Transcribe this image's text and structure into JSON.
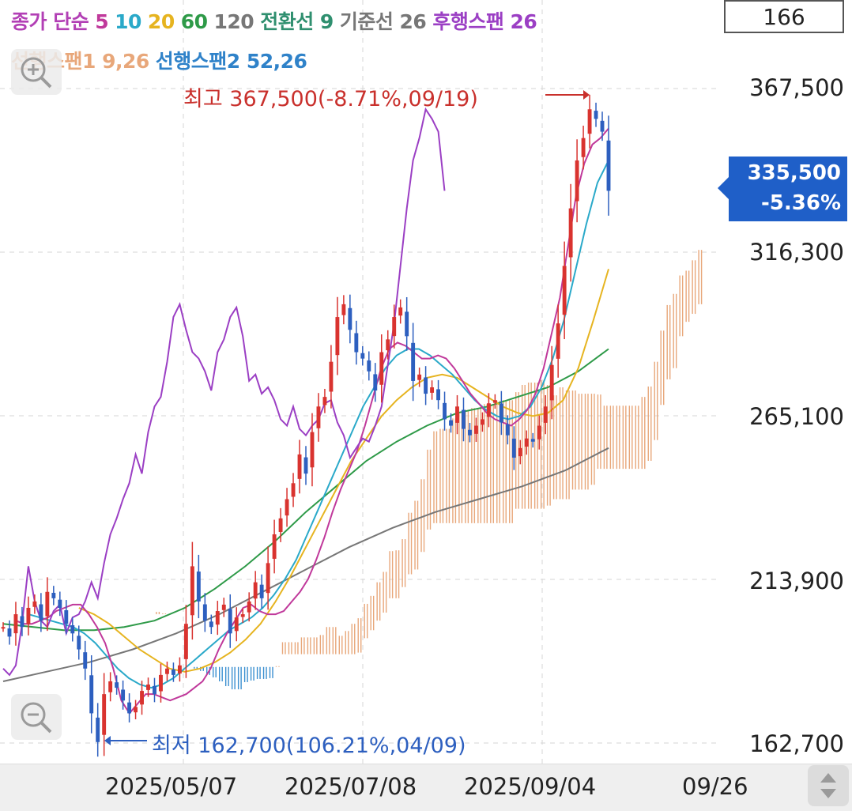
{
  "legend": {
    "line1": [
      {
        "text": "종가 단순",
        "color": "#b23fb5"
      },
      {
        "text": "5",
        "color": "#c0399b"
      },
      {
        "text": "10",
        "color": "#2aa9c9"
      },
      {
        "text": "20",
        "color": "#e6b420"
      },
      {
        "text": "60",
        "color": "#2e9a48"
      },
      {
        "text": "120",
        "color": "#777777"
      },
      {
        "text": "전환선 9",
        "color": "#2f8f6f"
      },
      {
        "text": "기준선 26",
        "color": "#777777"
      },
      {
        "text": "후행스팬 26",
        "color": "#9b3fc4"
      }
    ],
    "line2": [
      {
        "text": "선행스팬1 9,26",
        "color": "#e8a77a"
      },
      {
        "text": "선행스팬2 52,26",
        "color": "#2f82c9"
      }
    ]
  },
  "count_box": "166",
  "price_tag": {
    "price": "335,500",
    "change": "-5.36%"
  },
  "annotations": {
    "high": "최고 367,500(-8.71%,09/19)",
    "low": "최저 162,700(106.21%,04/09)"
  },
  "colors": {
    "up": "#d9332f",
    "down": "#2d5fbf",
    "high_text": "#c9302c",
    "low_text": "#2d5fbf",
    "tag_bg": "#1f5fc8"
  },
  "icons": [
    "zoom-in-icon",
    "zoom-out-icon",
    "scroll-arrows-icon"
  ],
  "chart_data": {
    "type": "candlestick",
    "y_axis": {
      "ticks": [
        367500,
        316300,
        265100,
        213900,
        162700
      ],
      "tick_labels": [
        "367,500",
        "316,300",
        "265,100",
        "213,900",
        "162,700"
      ],
      "range": [
        162700,
        367500
      ]
    },
    "x_axis": {
      "tick_labels": [
        "2025/05/07",
        "2025/07/08",
        "2025/09/04",
        "09/26"
      ]
    },
    "grid": true,
    "current_price": 335500,
    "change_percent": -5.36,
    "high": {
      "value": 367500,
      "pct": -8.71,
      "date": "09/19"
    },
    "low": {
      "value": 162700,
      "pct": 106.21,
      "date": "04/09"
    },
    "close": [
      199000,
      196000,
      203000,
      199000,
      205000,
      207000,
      201000,
      210000,
      208000,
      205000,
      200000,
      197000,
      192000,
      186000,
      172000,
      163000,
      178000,
      182000,
      180000,
      176000,
      172000,
      174000,
      179000,
      181000,
      178000,
      184000,
      186000,
      184000,
      187000,
      200000,
      218000,
      207000,
      201000,
      199000,
      204000,
      206000,
      197000,
      202000,
      203000,
      207000,
      213000,
      208000,
      219000,
      228000,
      233000,
      239000,
      244000,
      253000,
      247000,
      260000,
      268000,
      271000,
      282000,
      296000,
      300000,
      292000,
      285000,
      283000,
      279000,
      273000,
      285000,
      289000,
      296000,
      299000,
      290000,
      276000,
      278000,
      272000,
      274000,
      270000,
      264000,
      262000,
      268000,
      261000,
      259000,
      262000,
      264000,
      269000,
      270000,
      263000,
      259000,
      252000,
      255000,
      258000,
      257000,
      262000,
      268000,
      281000,
      294000,
      312000,
      330000,
      345000,
      352000,
      361000,
      358000,
      354000,
      335500
    ],
    "ma5": [
      201000,
      200000,
      200000,
      201000,
      202000,
      204000,
      205000,
      206000,
      206000,
      203000,
      199000,
      194000,
      186000,
      176000,
      172000,
      175000,
      178000,
      178000,
      177000,
      176000,
      177000,
      178000,
      180000,
      182000,
      186000,
      192000,
      197000,
      201000,
      205000,
      206000,
      204000,
      203000,
      203000,
      204000,
      207000,
      210000,
      214000,
      220000,
      227000,
      235000,
      242000,
      248000,
      254000,
      262000,
      271000,
      280000,
      286000,
      288000,
      287000,
      285000,
      283000,
      283000,
      284000,
      283000,
      280000,
      276000,
      272000,
      269000,
      266000,
      264000,
      263000,
      262000,
      264000,
      267000,
      272000,
      280000,
      291000,
      302000,
      318000,
      334000,
      344000,
      350000,
      352000,
      355000
    ],
    "ma10": [
      203000,
      202000,
      201000,
      200000,
      199000,
      197000,
      194000,
      190000,
      186000,
      183000,
      181000,
      180000,
      181000,
      183000,
      186000,
      189000,
      192000,
      195000,
      198000,
      200000,
      202000,
      205000,
      209000,
      214000,
      220000,
      228000,
      236000,
      244000,
      252000,
      260000,
      268000,
      274000,
      280000,
      284000,
      286000,
      286000,
      284000,
      281000,
      278000,
      274000,
      270000,
      267000,
      265000,
      264000,
      265000,
      268000,
      274000,
      283000,
      295000,
      310000,
      325000,
      338000,
      345000
    ],
    "ma20": [
      205000,
      203000,
      200000,
      196000,
      192000,
      189000,
      186000,
      185000,
      186000,
      188000,
      191000,
      195000,
      200000,
      207000,
      215000,
      224000,
      233000,
      242000,
      251000,
      258000,
      265000,
      270000,
      274000,
      277000,
      278000,
      277000,
      274000,
      271000,
      268000,
      266000,
      265000,
      266000,
      270000,
      280000,
      295000,
      311000
    ],
    "ma60": [
      200000,
      199000,
      198000,
      198000,
      199000,
      201000,
      205000,
      211000,
      218000,
      226000,
      235000,
      243000,
      251000,
      257000,
      262000,
      266000,
      268000,
      271000,
      274000,
      279000,
      286000
    ],
    "ma120": [
      182000,
      185000,
      188000,
      192000,
      197000,
      203000,
      210000,
      217000,
      224000,
      230000,
      235000,
      239000,
      243000,
      248000,
      255000
    ]
  }
}
